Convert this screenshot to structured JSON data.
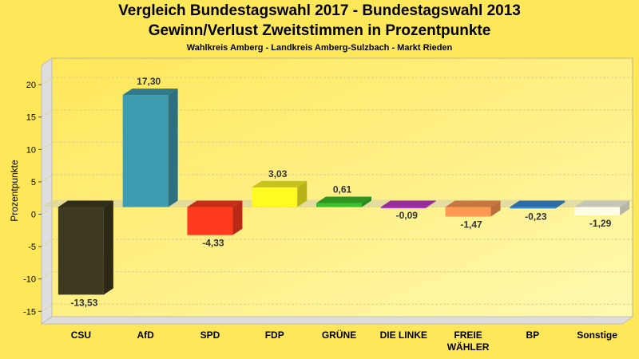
{
  "chart_data": {
    "type": "bar",
    "title": "Vergleich Bundestagswahl 2017 - Bundestagswahl 2013",
    "subtitle": "Gewinn/Verlust Zweitstimmen in Prozentpunkte",
    "subsubtitle": "Wahlkreis Amberg - Landkreis Amberg-Sulzbach - Markt Rieden",
    "xlabel": "",
    "ylabel": "Prozentpunkte",
    "ylim": [
      -18,
      22
    ],
    "yticks": [
      20,
      15,
      10,
      5,
      0,
      -5,
      -10,
      -15
    ],
    "grid": true,
    "categories": [
      "CSU",
      "AfD",
      "SPD",
      "FDP",
      "GRÜNE",
      "DIE LINKE",
      "FREIE WÄHLER",
      "BP",
      "Sonstige"
    ],
    "values": [
      -13.53,
      17.3,
      -4.33,
      3.03,
      0.61,
      -0.09,
      -1.47,
      -0.23,
      -1.29
    ],
    "value_labels": [
      "-13,53",
      "17,30",
      "-4,33",
      "3,03",
      "0,61",
      "-0,09",
      "-1,47",
      "-0,23",
      "-1,29"
    ],
    "colors": [
      "#3d3a1f",
      "#3e9cb0",
      "#ff3b1f",
      "#fffa22",
      "#3bbf2b",
      "#c23ac4",
      "#ff9a55",
      "#3a8bd6",
      "#fffde8"
    ]
  }
}
